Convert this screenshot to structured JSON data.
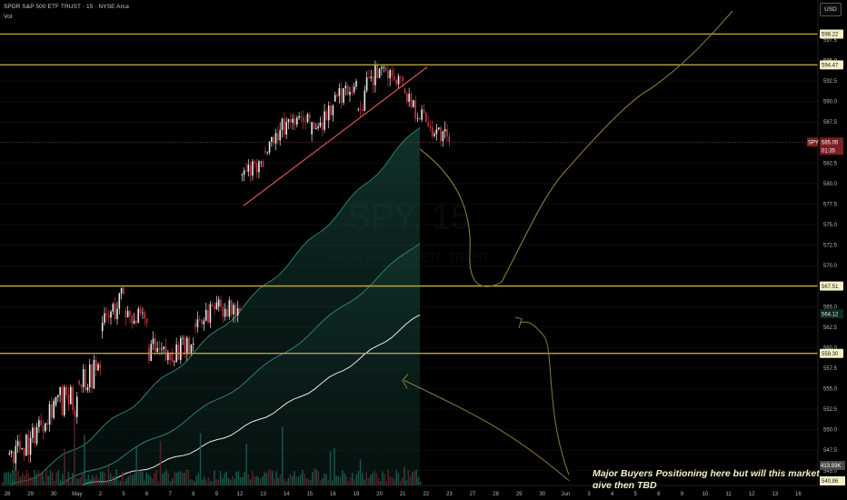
{
  "header": {
    "title": "SPDR S&P 500 ETF TRUST · 15 · NYSE Arca",
    "vol_label": "Vol",
    "currency_button": "USD"
  },
  "watermark": {
    "ticker": "SPY, 15",
    "name": "SPDR S&P 500 ETF TRUST"
  },
  "annotation": {
    "text": "Major Buyers Positioning here but will this market give then TBD"
  },
  "colors": {
    "background": "#000000",
    "level_line": "#b9a43d",
    "trendline": "#d9534f",
    "ma_fast": "#2f7f73",
    "ma_mid": "#2f7f73",
    "ma_slow": "#e8e8e8",
    "projection": "#8a7a3a",
    "up_candle": "#e9e9e9",
    "down_candle": "#c0393b"
  },
  "chart_data": {
    "type": "candlestick",
    "symbol": "SPY",
    "interval": "15",
    "exchange": "NYSE Arca",
    "currency": "USD",
    "price_axis": {
      "ylim": [
        543.2,
        600.6
      ],
      "ticks": [
        545.0,
        547.5,
        550.0,
        552.5,
        555.0,
        557.5,
        560.0,
        562.5,
        565.0,
        567.5,
        570.0,
        572.5,
        575.0,
        577.5,
        580.0,
        582.5,
        585.0,
        587.5,
        590.0,
        592.5,
        595.0,
        597.5
      ]
    },
    "time_axis": {
      "ticks": [
        "28",
        "29",
        "30",
        "May",
        "2",
        "5",
        "6",
        "7",
        "8",
        "9",
        "12",
        "13",
        "14",
        "15",
        "16",
        "19",
        "20",
        "21",
        "22",
        "23",
        "27",
        "28",
        "29",
        "30",
        "Jun",
        "3",
        "4",
        "5",
        "6",
        "9",
        "10",
        "11",
        "12",
        "13",
        "16"
      ]
    },
    "last_price": {
      "symbol": "SPY",
      "price": "585.05",
      "countdown": "01:35"
    },
    "horizontal_levels": [
      "598.22",
      "594.47",
      "567.51",
      "559.30"
    ],
    "moving_average_labels": [
      "564.12"
    ],
    "volume_labels": {
      "volume": "413.93K",
      "low_price": "540.86"
    },
    "daily_ohlc": [
      {
        "date": "Apr 28",
        "open": 547.0,
        "high": 551.0,
        "low": 543.5,
        "close": 549.0
      },
      {
        "date": "Apr 29",
        "open": 549.0,
        "high": 554.5,
        "low": 548.0,
        "close": 553.5
      },
      {
        "date": "Apr 30",
        "open": 553.0,
        "high": 555.5,
        "low": 544.0,
        "close": 554.0
      },
      {
        "date": "May 1",
        "open": 556.0,
        "high": 562.0,
        "low": 554.5,
        "close": 557.5
      },
      {
        "date": "May 2",
        "open": 562.0,
        "high": 568.0,
        "low": 561.0,
        "close": 566.5
      },
      {
        "date": "May 5",
        "open": 564.5,
        "high": 566.0,
        "low": 561.5,
        "close": 563.0
      },
      {
        "date": "May 6",
        "open": 560.0,
        "high": 563.5,
        "low": 557.5,
        "close": 558.5
      },
      {
        "date": "May 7",
        "open": 559.5,
        "high": 561.5,
        "low": 556.0,
        "close": 560.5
      },
      {
        "date": "May 8",
        "open": 563.0,
        "high": 570.5,
        "low": 560.0,
        "close": 565.5
      },
      {
        "date": "May 9",
        "open": 565.0,
        "high": 567.0,
        "low": 563.0,
        "close": 564.5
      },
      {
        "date": "May 12",
        "open": 581.0,
        "high": 583.0,
        "low": 578.0,
        "close": 582.0
      },
      {
        "date": "May 13",
        "open": 584.0,
        "high": 589.0,
        "low": 583.5,
        "close": 587.5
      },
      {
        "date": "May 14",
        "open": 587.5,
        "high": 589.0,
        "low": 586.5,
        "close": 588.0
      },
      {
        "date": "May 15",
        "open": 586.0,
        "high": 590.0,
        "low": 585.0,
        "close": 589.5
      },
      {
        "date": "May 16",
        "open": 590.0,
        "high": 593.0,
        "low": 589.0,
        "close": 592.5
      },
      {
        "date": "May 19",
        "open": 589.0,
        "high": 595.0,
        "low": 588.0,
        "close": 594.0
      },
      {
        "date": "May 20",
        "open": 594.0,
        "high": 594.5,
        "low": 591.5,
        "close": 592.5
      },
      {
        "date": "May 21",
        "open": 591.5,
        "high": 593.0,
        "low": 587.5,
        "close": 587.5
      },
      {
        "date": "May 22",
        "open": 587.5,
        "high": 589.0,
        "low": 584.5,
        "close": 585.05
      }
    ]
  }
}
